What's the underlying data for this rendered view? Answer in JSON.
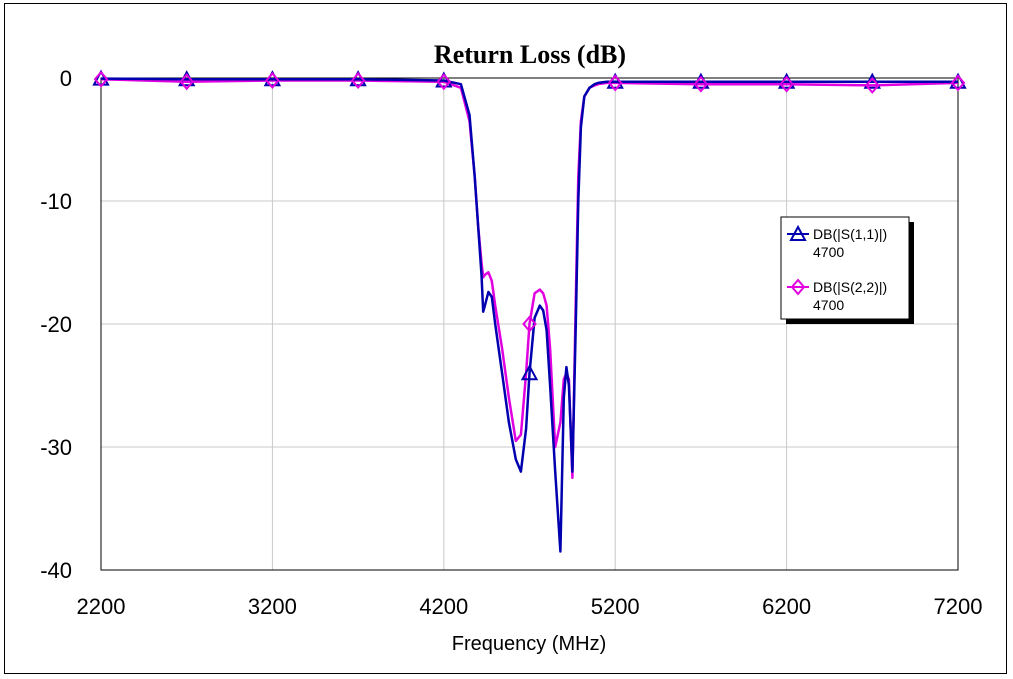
{
  "chart_data": {
    "type": "line",
    "title": "Return Loss (dB)",
    "xlabel": "Frequency (MHz)",
    "ylabel": "",
    "xlim": [
      2200,
      7200
    ],
    "ylim": [
      -40,
      0
    ],
    "xticks": [
      2200,
      3200,
      4200,
      5200,
      6200,
      7200
    ],
    "yticks": [
      0,
      -10,
      -20,
      -30,
      -40
    ],
    "x_tick_labels": [
      "2200",
      "3200",
      "4200",
      "5200",
      "6200",
      "7200"
    ],
    "y_tick_labels": [
      "0",
      "-10",
      "-20",
      "-30",
      "-40"
    ],
    "grid": true,
    "legend_position": "right",
    "series": [
      {
        "name": "DB(|S(1,1)|)",
        "sublabel": "4700",
        "color": "#0000b0",
        "marker": "triangle",
        "markers_x": [
          2200,
          2700,
          3200,
          3700,
          4200,
          4700,
          5200,
          5700,
          6200,
          6700,
          7200
        ],
        "x": [
          2200,
          2700,
          3200,
          3700,
          4200,
          4300,
          4350,
          4380,
          4400,
          4420,
          4430,
          4440,
          4460,
          4480,
          4500,
          4540,
          4580,
          4620,
          4650,
          4680,
          4700,
          4730,
          4760,
          4780,
          4800,
          4820,
          4850,
          4880,
          4900,
          4915,
          4930,
          4950,
          4970,
          4985,
          5000,
          5020,
          5050,
          5080,
          5100,
          5150,
          5200,
          5700,
          6200,
          6700,
          7200
        ],
        "y": [
          -0.05,
          -0.1,
          -0.1,
          -0.1,
          -0.2,
          -0.5,
          -3,
          -8,
          -12,
          -16,
          -19,
          -18.5,
          -17.4,
          -17.8,
          -20,
          -24,
          -28,
          -31,
          -32,
          -28.5,
          -24,
          -19.5,
          -18.5,
          -18.9,
          -20.5,
          -25,
          -32,
          -38.5,
          -26,
          -23.5,
          -25,
          -32,
          -20,
          -10,
          -4,
          -1.5,
          -0.8,
          -0.5,
          -0.4,
          -0.3,
          -0.3,
          -0.3,
          -0.3,
          -0.3,
          -0.3
        ]
      },
      {
        "name": "DB(|S(2,2)|)",
        "sublabel": "4700",
        "color": "#e000e0",
        "marker": "diamond",
        "markers_x": [
          2200,
          2700,
          3200,
          3700,
          4200,
          4700,
          5200,
          5700,
          6200,
          6700,
          7200
        ],
        "x": [
          2200,
          2700,
          3200,
          3700,
          4200,
          4300,
          4350,
          4380,
          4400,
          4420,
          4430,
          4440,
          4460,
          4480,
          4500,
          4540,
          4580,
          4620,
          4650,
          4680,
          4700,
          4730,
          4760,
          4780,
          4800,
          4820,
          4850,
          4880,
          4900,
          4915,
          4930,
          4950,
          4970,
          4985,
          5000,
          5020,
          5050,
          5080,
          5100,
          5150,
          5200,
          5700,
          6200,
          6700,
          7200
        ],
        "y": [
          -0.1,
          -0.3,
          -0.2,
          -0.2,
          -0.3,
          -0.8,
          -3.5,
          -8,
          -12,
          -15,
          -16.2,
          -16,
          -15.8,
          -16.5,
          -18.5,
          -22,
          -26,
          -29.5,
          -29,
          -24,
          -20,
          -17.5,
          -17.2,
          -17.5,
          -18.5,
          -22,
          -30,
          -28,
          -24.5,
          -24,
          -24.5,
          -32.5,
          -18,
          -8,
          -3.5,
          -1.5,
          -0.8,
          -0.6,
          -0.5,
          -0.4,
          -0.4,
          -0.5,
          -0.5,
          -0.6,
          -0.4
        ]
      }
    ]
  }
}
